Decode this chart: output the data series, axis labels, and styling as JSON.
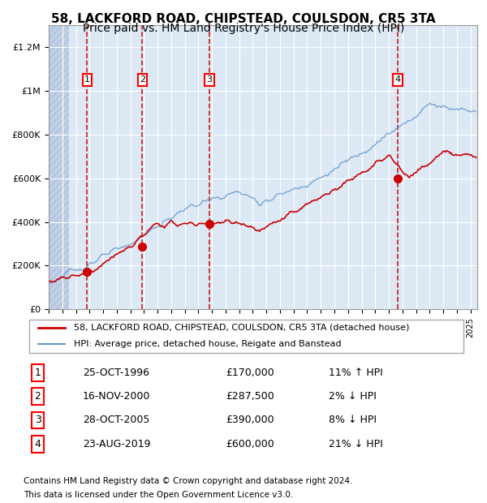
{
  "title1": "58, LACKFORD ROAD, CHIPSTEAD, COULSDON, CR5 3TA",
  "title2": "Price paid vs. HM Land Registry's House Price Index (HPI)",
  "legend_house": "58, LACKFORD ROAD, CHIPSTEAD, COULSDON, CR5 3TA (detached house)",
  "legend_hpi": "HPI: Average price, detached house, Reigate and Banstead",
  "footer1": "Contains HM Land Registry data © Crown copyright and database right 2024.",
  "footer2": "This data is licensed under the Open Government Licence v3.0.",
  "sales": [
    {
      "num": 1,
      "date_dec": 1996.82,
      "price": 170000,
      "label": "25-OCT-1996",
      "pct": "11%",
      "dir": "↑"
    },
    {
      "num": 2,
      "date_dec": 2000.88,
      "price": 287500,
      "label": "16-NOV-2000",
      "pct": "2%",
      "dir": "↓"
    },
    {
      "num": 3,
      "date_dec": 2005.82,
      "price": 390000,
      "label": "28-OCT-2005",
      "pct": "8%",
      "dir": "↓"
    },
    {
      "num": 4,
      "date_dec": 2019.65,
      "price": 600000,
      "label": "23-AUG-2019",
      "pct": "21%",
      "dir": "↓"
    }
  ],
  "ylim": [
    0,
    1300000
  ],
  "xlim_start": 1994.0,
  "xlim_end": 2025.5,
  "hatch_end": 1995.5,
  "bg_color": "#dce9f5",
  "hatch_color": "#c0d0e8",
  "grid_color": "#ffffff",
  "house_line_color": "#cc0000",
  "hpi_line_color": "#6699cc",
  "sale_marker_color": "#cc0000",
  "dashed_line_color": "#cc0000",
  "title_fontsize": 11,
  "subtitle_fontsize": 10,
  "ytick_labels": [
    "£0",
    "£200K",
    "£400K",
    "£600K",
    "£800K",
    "£1M",
    "£1.2M"
  ],
  "ytick_values": [
    0,
    200000,
    400000,
    600000,
    800000,
    1000000,
    1200000
  ]
}
